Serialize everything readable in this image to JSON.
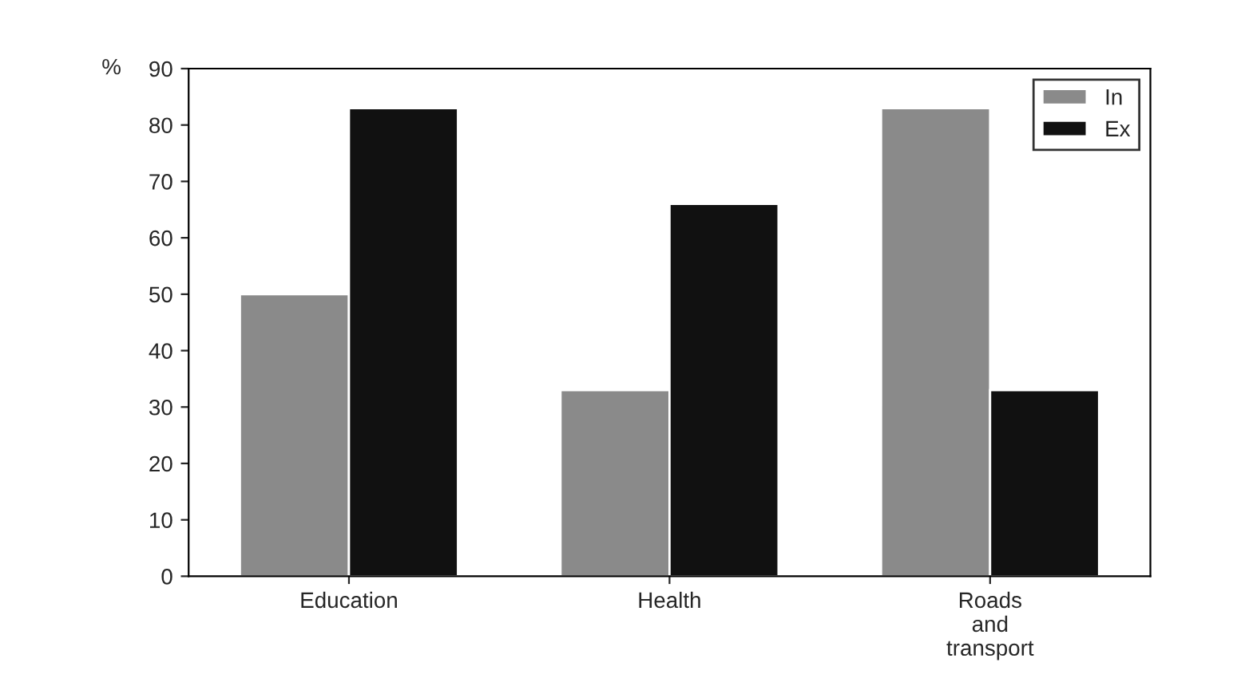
{
  "chart_data": {
    "type": "bar",
    "ylabel": "%",
    "categories": [
      "Education",
      "Health",
      "Roads\nand\ntransport"
    ],
    "series": [
      {
        "name": "In",
        "color": "#8a8a8a",
        "values": [
          50,
          33,
          83
        ]
      },
      {
        "name": "Ex",
        "color": "#111111",
        "values": [
          83,
          66,
          33
        ]
      }
    ],
    "ylim": [
      0,
      90
    ],
    "yticks": [
      0,
      10,
      20,
      30,
      40,
      50,
      60,
      70,
      80,
      90
    ],
    "grid": false,
    "legend": "top right"
  }
}
